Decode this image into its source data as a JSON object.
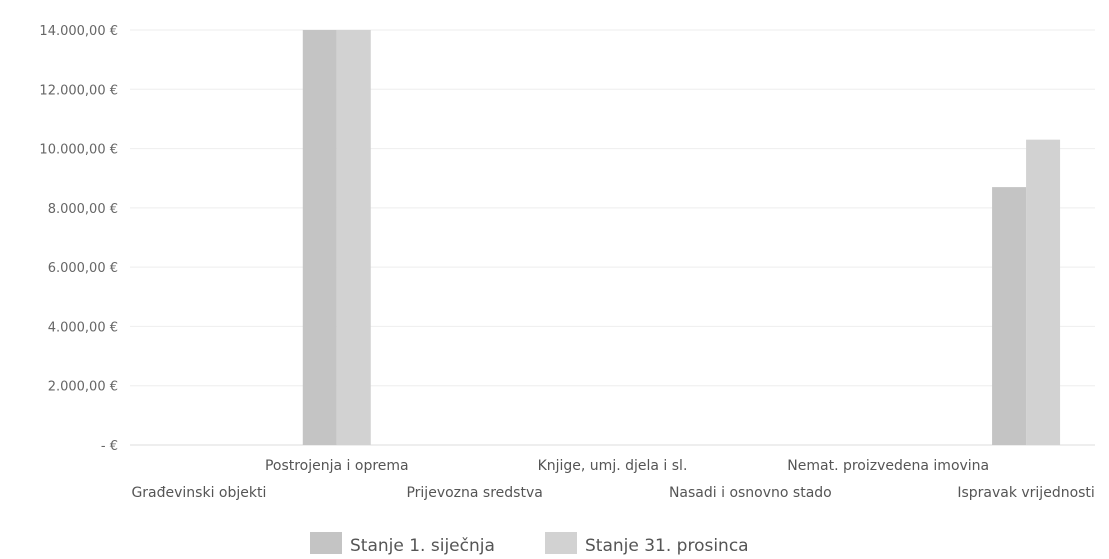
{
  "chart_data": {
    "type": "bar",
    "title": "",
    "xlabel": "",
    "ylabel": "",
    "ylim": [
      0,
      14000
    ],
    "y_ticks": [
      0,
      2000,
      4000,
      6000,
      8000,
      10000,
      12000,
      14000
    ],
    "y_tick_labels": [
      "-   €",
      "2.000,00 €",
      "4.000,00 €",
      "6.000,00 €",
      "8.000,00 €",
      "10.000,00 €",
      "12.000,00 €",
      "14.000,00 €"
    ],
    "grid": true,
    "legend_position": "bottom",
    "categories": [
      "Građevinski objekti",
      "Postrojenja i oprema",
      "Prijevozna sredstva",
      "Knjige, umj. djela i sl.",
      "Nasadi i osnovno stado",
      "Nemat. proizvedena imovina",
      "Ispravak vrijednosti"
    ],
    "series": [
      {
        "name": "Stanje 1. siječnja",
        "color": "#c4c4c4",
        "values": [
          0,
          14000,
          0,
          0,
          0,
          0,
          8700
        ]
      },
      {
        "name": "Stanje 31. prosinca",
        "color": "#d2d2d2",
        "values": [
          0,
          14000,
          0,
          0,
          0,
          0,
          10300
        ]
      }
    ]
  }
}
